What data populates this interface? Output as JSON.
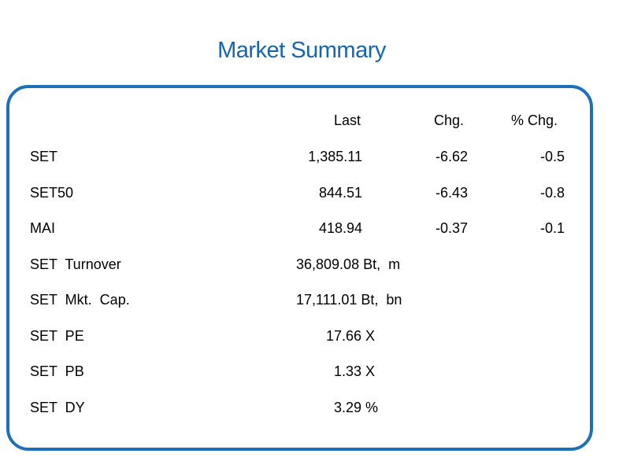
{
  "title": "Market Summary",
  "columns": {
    "last": "Last",
    "chg": "Chg.",
    "pct": "% Chg."
  },
  "indices": [
    {
      "name": "SET",
      "last": "1,385.11",
      "chg": "-6.62",
      "pct": "-0.5"
    },
    {
      "name": "SET50",
      "last": "844.51",
      "chg": "-6.43",
      "pct": "-0.8"
    },
    {
      "name": "MAI",
      "last": "418.94",
      "chg": "-0.37",
      "pct": "-0.1"
    }
  ],
  "stats": [
    {
      "label": "SET  Turnover",
      "value": "36,809.08 Bt,  m"
    },
    {
      "label": "SET  Mkt.  Cap.",
      "value": "17,111.01 Bt,  bn"
    },
    {
      "label": "SET  PE",
      "value": "17.66 X"
    },
    {
      "label": "SET  PB",
      "value": "1.33 X"
    },
    {
      "label": "SET  DY",
      "value": "3.29 %"
    }
  ],
  "colors": {
    "accent": "#1565b0",
    "border": "#1e6fba"
  }
}
